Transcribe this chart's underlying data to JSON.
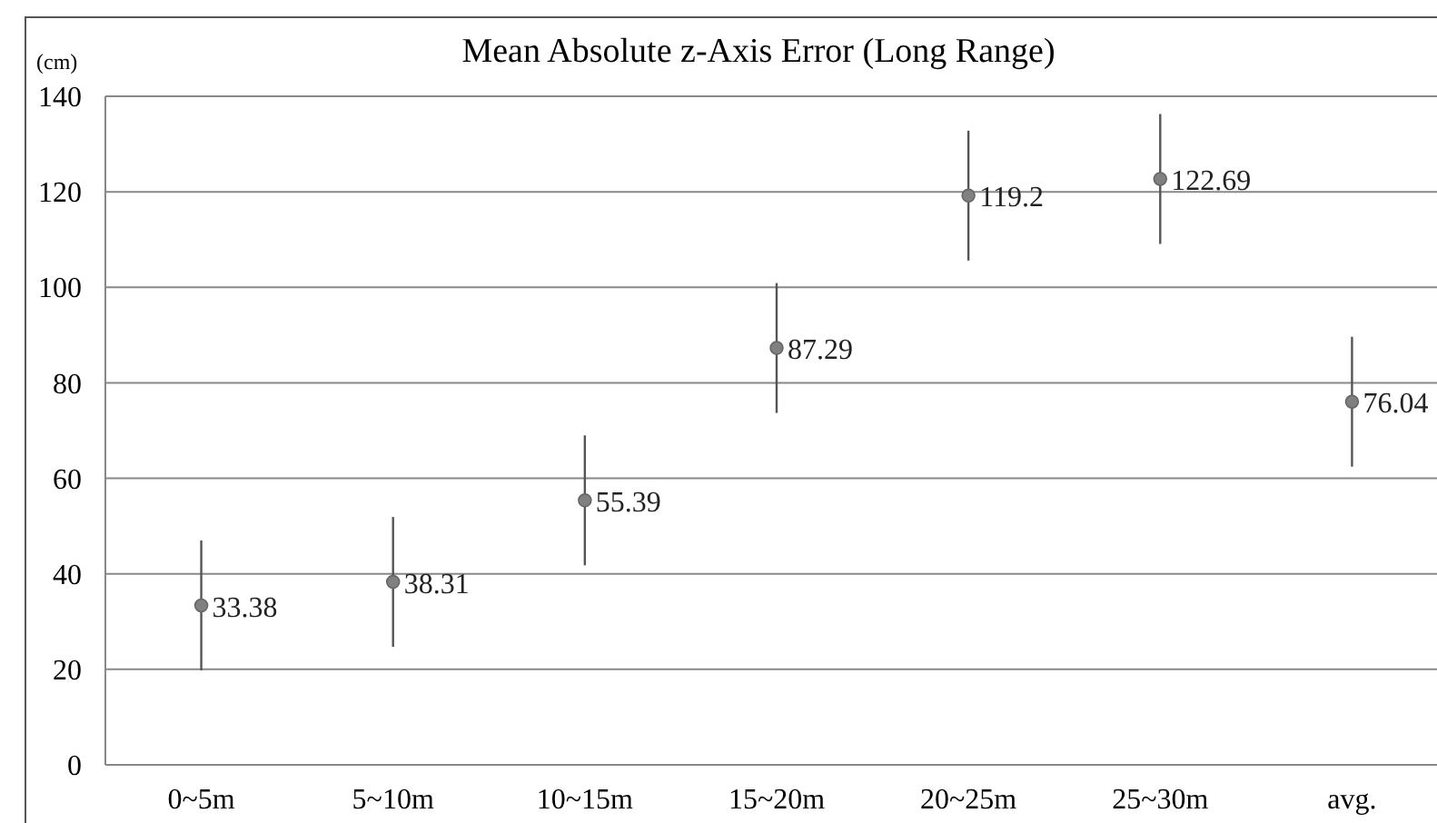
{
  "chart_data": {
    "type": "scatter",
    "title": "Mean Absolute z-Axis Error (Long Range)",
    "ylabel": "(cm)",
    "categories": [
      "0~5m",
      "5~10m",
      "10~15m",
      "15~20m",
      "20~25m",
      "25~30m",
      "avg."
    ],
    "series": [
      {
        "color": "#808080",
        "values": [
          33.38,
          38.31,
          55.39,
          87.29,
          119.2,
          122.69,
          76.04
        ],
        "errors": [
          13.6,
          13.6,
          13.6,
          13.6,
          13.6,
          13.6,
          13.6
        ]
      }
    ],
    "ylim": [
      0,
      140
    ],
    "yticks": [
      0,
      20,
      40,
      60,
      80,
      100,
      120,
      140
    ],
    "grid": "y",
    "marker": "circle",
    "data_labels": true
  }
}
